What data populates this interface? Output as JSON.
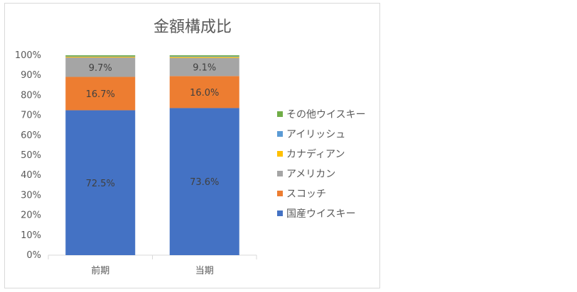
{
  "chart_data": {
    "type": "stacked-bar-100",
    "title": "金額構成比",
    "categories": [
      "前期",
      "当期"
    ],
    "series": [
      {
        "name": "国産ウイスキー",
        "color": "#4472c4",
        "values": [
          72.5,
          73.6
        ],
        "labels": [
          "72.5%",
          "73.6%"
        ]
      },
      {
        "name": "スコッチ",
        "color": "#ed7d31",
        "values": [
          16.7,
          16.0
        ],
        "labels": [
          "16.7%",
          "16.0%"
        ]
      },
      {
        "name": "アメリカン",
        "color": "#a5a5a5",
        "values": [
          9.7,
          9.1
        ],
        "labels": [
          "9.7%",
          "9.1%"
        ]
      },
      {
        "name": "カナディアン",
        "color": "#ffc000",
        "values": [
          0.4,
          0.5
        ],
        "labels": [
          "",
          ""
        ]
      },
      {
        "name": "アイリッシュ",
        "color": "#5b9bd5",
        "values": [
          0.2,
          0.3
        ],
        "labels": [
          "",
          ""
        ]
      },
      {
        "name": "その他ウイスキー",
        "color": "#70ad47",
        "values": [
          0.5,
          0.5
        ],
        "labels": [
          "",
          ""
        ]
      }
    ],
    "y_ticks": [
      "0%",
      "10%",
      "20%",
      "30%",
      "40%",
      "50%",
      "60%",
      "70%",
      "80%",
      "90%",
      "100%"
    ],
    "ylim": [
      0,
      100
    ],
    "grid": false,
    "legend": "right"
  }
}
